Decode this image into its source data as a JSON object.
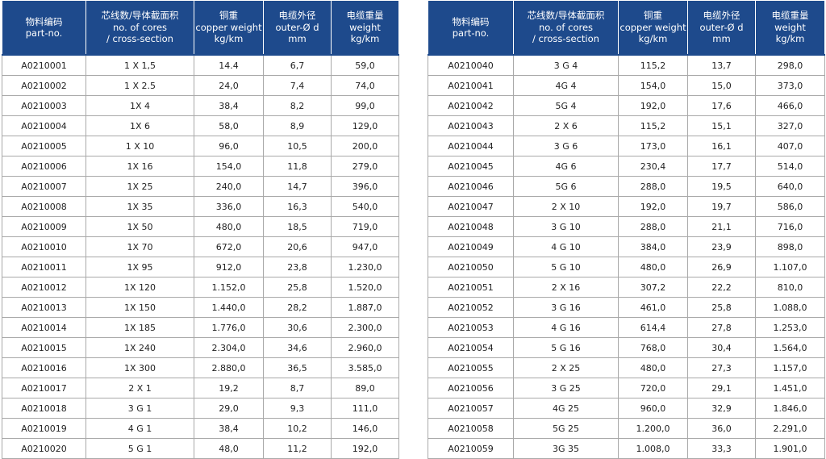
{
  "columns": [
    {
      "zh": "物料编码",
      "en1": "part-no.",
      "en2": ""
    },
    {
      "zh": "芯线数/导体截面积",
      "en1": "no. of cores",
      "en2": "/ cross-section"
    },
    {
      "zh": "铜重",
      "en1": "copper weight",
      "en2": "kg/km"
    },
    {
      "zh": "电缆外径",
      "en1": "outer-Ø d",
      "en2": "mm"
    },
    {
      "zh": "电缆重量",
      "en1": "weight",
      "en2": "kg/km"
    }
  ],
  "left_rows": [
    [
      "A0210001",
      "1 X 1,5",
      "14.4",
      "6,7",
      "59,0"
    ],
    [
      "A0210002",
      "1 X 2.5",
      "24,0",
      "7,4",
      "74,0"
    ],
    [
      "A0210003",
      "1X 4",
      "38,4",
      "8,2",
      "99,0"
    ],
    [
      "A0210004",
      "1X 6",
      "58,0",
      "8,9",
      "129,0"
    ],
    [
      "A0210005",
      "1 X 10",
      "96,0",
      "10,5",
      "200,0"
    ],
    [
      "A0210006",
      "1X 16",
      "154,0",
      "11,8",
      "279,0"
    ],
    [
      "A0210007",
      "1X 25",
      "240,0",
      "14,7",
      "396,0"
    ],
    [
      "A0210008",
      "1X 35",
      "336,0",
      "16,3",
      "540,0"
    ],
    [
      "A0210009",
      "1X 50",
      "480,0",
      "18,5",
      "719,0"
    ],
    [
      "A0210010",
      "1X 70",
      "672,0",
      "20,6",
      "947,0"
    ],
    [
      "A0210011",
      "1X 95",
      "912,0",
      "23,8",
      "1.230,0"
    ],
    [
      "A0210012",
      "1X 120",
      "1.152,0",
      "25,8",
      "1.520,0"
    ],
    [
      "A0210013",
      "1X 150",
      "1.440,0",
      "28,2",
      "1.887,0"
    ],
    [
      "A0210014",
      "1X 185",
      "1.776,0",
      "30,6",
      "2.300,0"
    ],
    [
      "A0210015",
      "1X 240",
      "2.304,0",
      "34,6",
      "2.960,0"
    ],
    [
      "A0210016",
      "1X 300",
      "2.880,0",
      "36,5",
      "3.585,0"
    ],
    [
      "A0210017",
      "2 X 1",
      "19,2",
      "8,7",
      "89,0"
    ],
    [
      "A0210018",
      "3 G 1",
      "29,0",
      "9,3",
      "111,0"
    ],
    [
      "A0210019",
      "4 G 1",
      "38,4",
      "10,2",
      "146,0"
    ],
    [
      "A0210020",
      "5 G 1",
      "48,0",
      "11,2",
      "192,0"
    ]
  ],
  "right_rows": [
    [
      "A0210040",
      "3 G 4",
      "115,2",
      "13,7",
      "298,0"
    ],
    [
      "A0210041",
      "4G 4",
      "154,0",
      "15,0",
      "373,0"
    ],
    [
      "A0210042",
      "5G 4",
      "192,0",
      "17,6",
      "466,0"
    ],
    [
      "A0210043",
      "2 X 6",
      "115,2",
      "15,1",
      "327,0"
    ],
    [
      "A0210044",
      "3 G 6",
      "173,0",
      "16,1",
      "407,0"
    ],
    [
      "A0210045",
      "4G 6",
      "230,4",
      "17,7",
      "514,0"
    ],
    [
      "A0210046",
      "5G 6",
      "288,0",
      "19,5",
      "640,0"
    ],
    [
      "A0210047",
      "2 X 10",
      "192,0",
      "19,7",
      "586,0"
    ],
    [
      "A0210048",
      "3 G 10",
      "288,0",
      "21,1",
      "716,0"
    ],
    [
      "A0210049",
      "4 G 10",
      "384,0",
      "23,9",
      "898,0"
    ],
    [
      "A0210050",
      "5 G 10",
      "480,0",
      "26,9",
      "1.107,0"
    ],
    [
      "A0210051",
      "2 X 16",
      "307,2",
      "22,2",
      "810,0"
    ],
    [
      "A0210052",
      "3 G 16",
      "461,0",
      "25,8",
      "1.088,0"
    ],
    [
      "A0210053",
      "4 G 16",
      "614,4",
      "27,8",
      "1.253,0"
    ],
    [
      "A0210054",
      "5 G 16",
      "768,0",
      "30,4",
      "1.564,0"
    ],
    [
      "A0210055",
      "2 X 25",
      "480,0",
      "27,3",
      "1.157,0"
    ],
    [
      "A0210056",
      "3 G 25",
      "720,0",
      "29,1",
      "1.451,0"
    ],
    [
      "A0210057",
      "4G 25",
      "960,0",
      "32,9",
      "1.846,0"
    ],
    [
      "A0210058",
      "5G 25",
      "1.200,0",
      "36,0",
      "2.291,0"
    ],
    [
      "A0210059",
      "3G 35",
      "1.008,0",
      "33,3",
      "1.901,0"
    ]
  ],
  "colors": {
    "header_bg": "#1e4a8c",
    "header_text": "#ffffff",
    "border": "#a9a9a9"
  }
}
